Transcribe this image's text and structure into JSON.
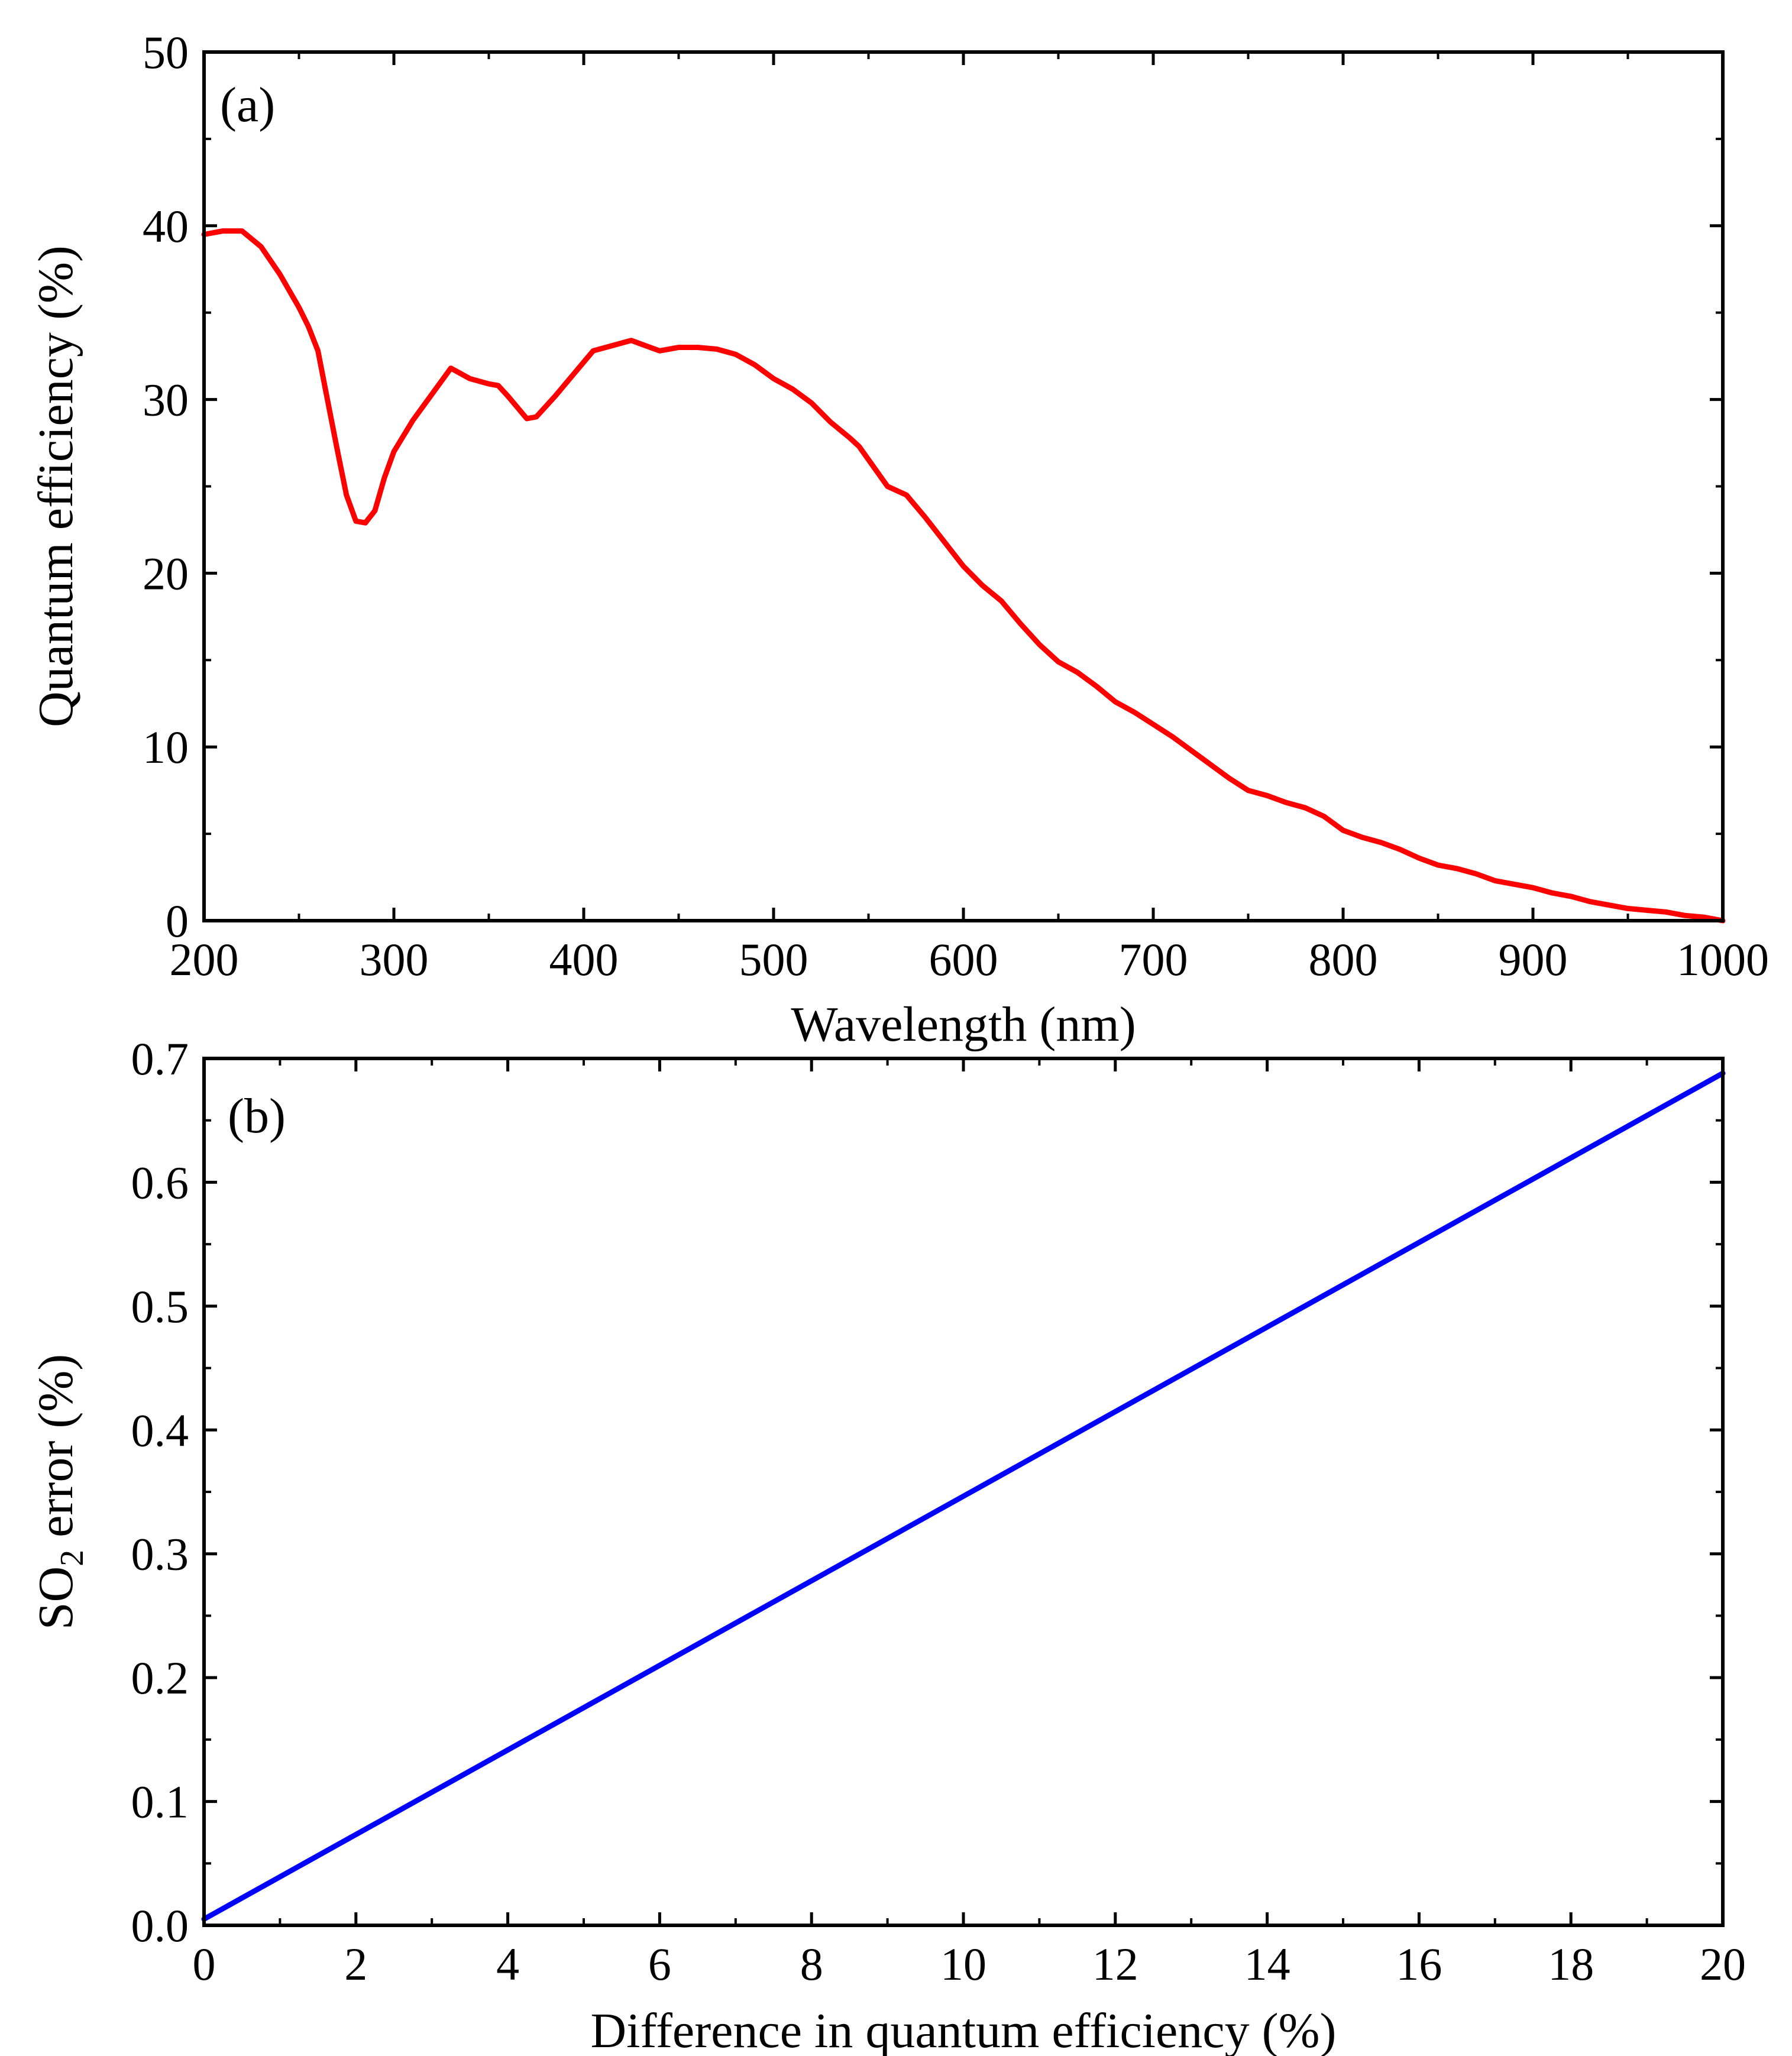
{
  "figure": {
    "colors": {
      "panel_a_line": "#ff0000",
      "panel_b_line": "#0000ff",
      "axes": "#000000",
      "background": "#ffffff"
    }
  },
  "chart_data": [
    {
      "type": "line",
      "panel_label": "(a)",
      "xlabel": "Wavelength (nm)",
      "ylabel": "Quantum efficiency (%)",
      "xlim": [
        200,
        1000
      ],
      "ylim": [
        0,
        50
      ],
      "xticks": [
        "200",
        "300",
        "400",
        "500",
        "600",
        "700",
        "800",
        "900",
        "1000"
      ],
      "yticks": [
        "0",
        "10",
        "20",
        "30",
        "40",
        "50"
      ],
      "series": [
        {
          "name": "Quantum efficiency",
          "color": "#ff0000",
          "x": [
            200,
            210,
            220,
            230,
            240,
            250,
            255,
            260,
            265,
            270,
            275,
            280,
            285,
            290,
            295,
            300,
            310,
            320,
            330,
            335,
            340,
            350,
            355,
            360,
            370,
            375,
            385,
            395,
            405,
            415,
            425,
            430,
            440,
            450,
            460,
            470,
            480,
            490,
            500,
            510,
            520,
            530,
            540,
            545,
            560,
            570,
            580,
            590,
            600,
            610,
            620,
            630,
            640,
            650,
            660,
            670,
            680,
            690,
            700,
            710,
            720,
            730,
            740,
            750,
            760,
            770,
            780,
            790,
            800,
            810,
            820,
            830,
            840,
            850,
            860,
            870,
            880,
            890,
            900,
            910,
            920,
            930,
            940,
            950,
            960,
            970,
            980,
            990,
            1000
          ],
          "values": [
            39.5,
            39.7,
            39.7,
            38.8,
            37.2,
            35.3,
            34.2,
            32.8,
            30.0,
            27.2,
            24.5,
            23.0,
            22.9,
            23.6,
            25.5,
            27.0,
            28.8,
            30.3,
            31.8,
            31.5,
            31.2,
            30.9,
            30.8,
            30.2,
            28.9,
            29.0,
            30.2,
            31.5,
            32.8,
            33.1,
            33.4,
            33.2,
            32.8,
            33.0,
            33.0,
            32.9,
            32.6,
            32.0,
            31.2,
            30.6,
            29.8,
            28.7,
            27.8,
            27.3,
            25.0,
            24.5,
            23.2,
            21.8,
            20.4,
            19.3,
            18.4,
            17.1,
            15.9,
            14.9,
            14.3,
            13.5,
            12.6,
            12.0,
            11.3,
            10.6,
            9.8,
            9.0,
            8.2,
            7.5,
            7.2,
            6.8,
            6.5,
            6.0,
            5.2,
            4.8,
            4.5,
            4.1,
            3.6,
            3.2,
            3.0,
            2.7,
            2.3,
            2.1,
            1.9,
            1.6,
            1.4,
            1.1,
            0.9,
            0.7,
            0.6,
            0.5,
            0.3,
            0.2,
            0.0
          ]
        }
      ]
    },
    {
      "type": "line",
      "panel_label": "(b)",
      "xlabel": "Difference in quantum efficiency  (%)",
      "ylabel_main": "SO",
      "ylabel_sub": "2",
      "ylabel_rest": " error (%)",
      "xlim": [
        0,
        20
      ],
      "ylim": [
        0,
        0.7
      ],
      "xticks": [
        "0",
        "2",
        "4",
        "6",
        "8",
        "10",
        "12",
        "14",
        "16",
        "18",
        "20"
      ],
      "yticks": [
        "0.0",
        "0.1",
        "0.2",
        "0.3",
        "0.4",
        "0.5",
        "0.6",
        "0.7"
      ],
      "series": [
        {
          "name": "SO2 error",
          "color": "#0000ff",
          "x": [
            0,
            20
          ],
          "values": [
            0.005,
            0.688
          ]
        }
      ]
    }
  ]
}
